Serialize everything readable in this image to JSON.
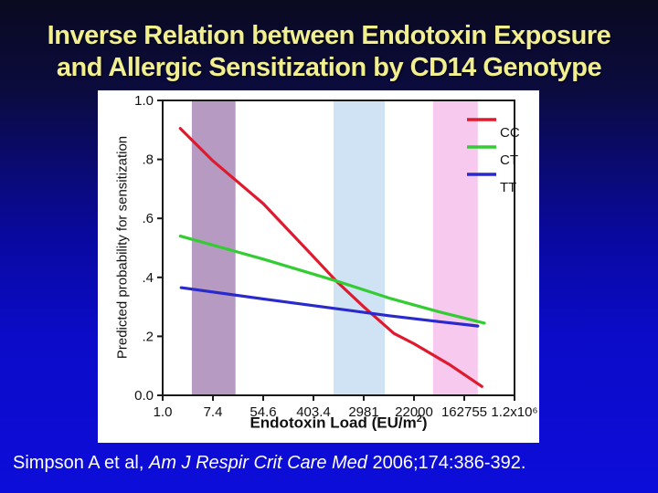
{
  "slide": {
    "title_line1": "Inverse Relation between Endotoxin Exposure",
    "title_line2": "and Allergic Sensitization by CD14 Genotype",
    "title_color": "#f2ef8f",
    "background_gradient": [
      "#0a0a20",
      "#0b0b3e",
      "#0909a0",
      "#0b0bc8",
      "#0d0dda"
    ],
    "background_stops_pct": [
      0,
      18,
      48,
      68,
      100
    ],
    "citation": {
      "prefix": "Simpson A et al, ",
      "journal_italic": "Am J Respir Crit Care Med",
      "suffix": " 2006;174:386-392."
    }
  },
  "chart_data": {
    "type": "line",
    "title": "",
    "xlabel": {
      "prefix": "Endotoxin Load (EU/m",
      "sup": "2",
      "suffix": ")"
    },
    "ylabel": "Predicted probability for sensitization",
    "x_scale": "log",
    "x_tick_labels": [
      "1.0",
      "7.4",
      "54.6",
      "403.4",
      "2981",
      "22000",
      "162755",
      "1.2x10⁶"
    ],
    "x_values_at_ticks": [
      1.0,
      7.4,
      54.6,
      403.4,
      2981,
      22000,
      162755,
      1200000
    ],
    "y_tick_labels": [
      "1.0",
      ".8",
      ".6",
      ".4",
      ".2",
      "0.0"
    ],
    "y_tick_values": [
      1.0,
      0.8,
      0.6,
      0.4,
      0.2,
      0.0
    ],
    "ylim": [
      0,
      1
    ],
    "grid": "off",
    "legend_position": "top-right-inside",
    "points_note": "points are [tick_position, probability]; endotoxin load approx 7.4^tick_position EU/m2",
    "series": [
      {
        "name": "CC",
        "color": "#e01a2e",
        "points": [
          [
            0.35,
            0.905
          ],
          [
            1.0,
            0.795
          ],
          [
            2.0,
            0.65
          ],
          [
            3.0,
            0.47
          ],
          [
            3.45,
            0.388
          ],
          [
            4.0,
            0.3
          ],
          [
            4.6,
            0.21
          ],
          [
            5.0,
            0.175
          ],
          [
            5.7,
            0.105
          ],
          [
            6.35,
            0.03
          ]
        ]
      },
      {
        "name": "CT",
        "color": "#33cc33",
        "points": [
          [
            0.35,
            0.54
          ],
          [
            2.0,
            0.462
          ],
          [
            3.45,
            0.388
          ],
          [
            4.5,
            0.33
          ],
          [
            5.5,
            0.283
          ],
          [
            6.4,
            0.245
          ]
        ]
      },
      {
        "name": "TT",
        "color": "#2929cc",
        "points": [
          [
            0.37,
            0.365
          ],
          [
            2.0,
            0.327
          ],
          [
            3.5,
            0.293
          ],
          [
            4.5,
            0.27
          ],
          [
            5.5,
            0.25
          ],
          [
            6.27,
            0.235
          ]
        ]
      }
    ],
    "bands": [
      {
        "name": "mauve",
        "color": "#b69ac1",
        "t_from": 0.58,
        "t_to": 1.45
      },
      {
        "name": "lightblue",
        "color": "#cfe3f4",
        "t_from": 3.4,
        "t_to": 4.42
      },
      {
        "name": "pink",
        "color": "#f7c9ee",
        "t_from": 5.38,
        "t_to": 6.27
      }
    ]
  }
}
